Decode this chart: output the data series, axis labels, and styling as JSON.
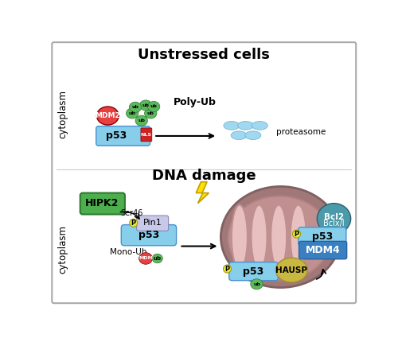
{
  "title_top": "Unstressed cells",
  "title_dna": "DNA damage",
  "label_cytoplasm": "cytoplasm",
  "p53_color": "#87ceeb",
  "p53_edge": "#4a90d0",
  "mdm2_color": "#e84040",
  "mdm2_edge": "#880000",
  "ub_color": "#5cb85c",
  "ub_edge": "#2d7a2d",
  "nls_color": "#cc2222",
  "nls_edge": "#880000",
  "pin1_color": "#c8c8e8",
  "pin1_edge": "#8888bb",
  "hipk2_color": "#4cae4c",
  "hipk2_edge": "#2d7a2d",
  "mito_outer_color": "#a07878",
  "mito_outer_edge": "#806060",
  "mito_inner_color": "#c09090",
  "mito_inner_edge": "#b08080",
  "mito_cristae_color": "#e8c0c0",
  "mito_cristae_edge": "#c09090",
  "bcl2_color": "#4a9aaa",
  "bcl2_edge": "#2a6070",
  "mdm4_color": "#3a80c0",
  "mdm4_edge": "#2a60a0",
  "hausp_color": "#c8b840",
  "hausp_edge": "#a09030",
  "p_yellow": "#e8e840",
  "p_edge": "#a0a000",
  "proteasome_color": "#a0d8ef",
  "proteasome_edge": "#6ab0cc",
  "border_color": "#aaaaaa",
  "bg": "#ffffff"
}
